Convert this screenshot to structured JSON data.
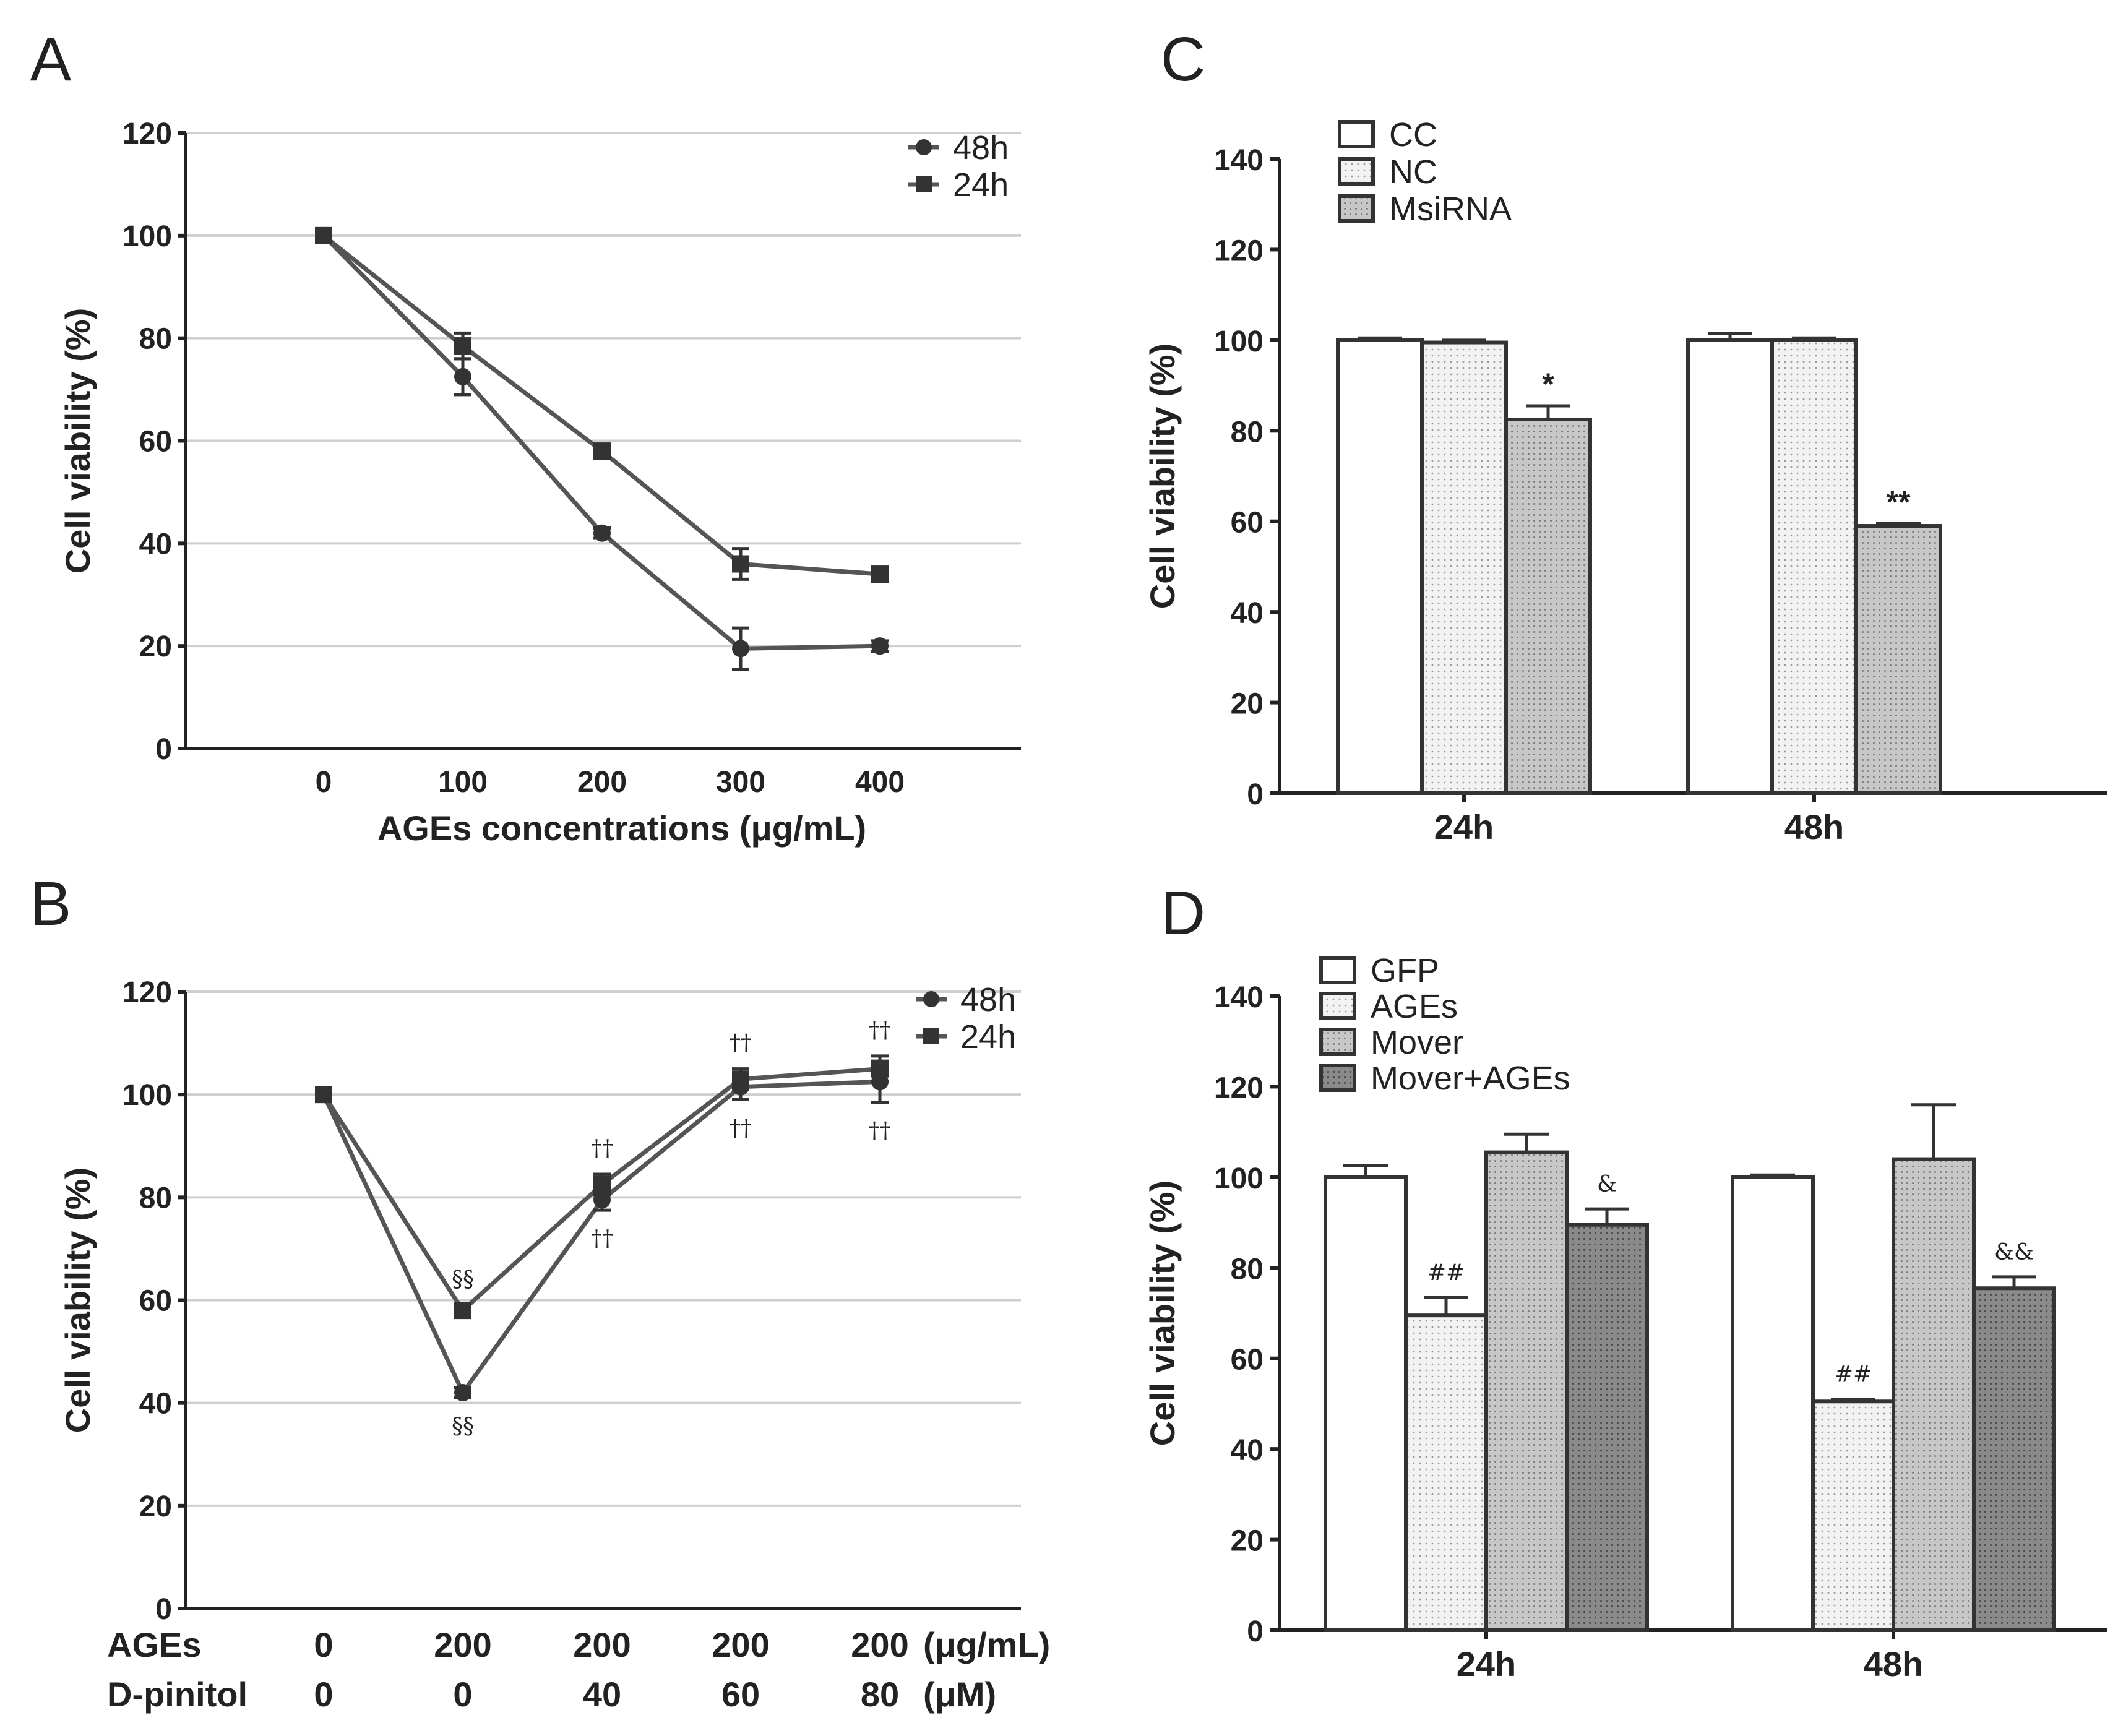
{
  "colors": {
    "axis": "#222222",
    "grid": "#cfcfcf",
    "line": "#555555",
    "bar_white": "#ffffff",
    "bar_light": "#f2f2f2",
    "bar_mid": "#c7c7c7",
    "bar_dark": "#8a8a8a"
  },
  "chart_data": [
    {
      "panel": "A",
      "type": "line",
      "title": "",
      "xlabel": "AGEs concentrations (μg/mL)",
      "ylabel": "Cell viability (%)",
      "x": [
        0,
        100,
        200,
        300,
        400
      ],
      "x_tick_labels": [
        "0",
        "100",
        "200",
        "300",
        "400"
      ],
      "y_ticks": [
        "0",
        "20",
        "40",
        "60",
        "80",
        "100",
        "120"
      ],
      "ylim": [
        0,
        120
      ],
      "grid": true,
      "legend_position": "top-right",
      "series": [
        {
          "name": "48h",
          "marker": "circle-icon",
          "values": [
            100,
            72.5,
            42,
            19.5,
            20
          ],
          "errors": [
            1,
            3.5,
            1,
            4,
            1
          ]
        },
        {
          "name": "24h",
          "marker": "square-icon",
          "values": [
            100,
            78.5,
            58,
            36,
            34
          ],
          "errors": [
            1,
            2.5,
            1,
            3,
            1
          ]
        }
      ]
    },
    {
      "panel": "B",
      "type": "line",
      "title": "",
      "ylabel": "Cell viability (%)",
      "row_labels": [
        {
          "name": "AGEs",
          "unit": "(μg/mL)",
          "values": [
            "0",
            "200",
            "200",
            "200",
            "200"
          ]
        },
        {
          "name": "D-pinitol",
          "unit": "(μM)",
          "values": [
            "0",
            "0",
            "40",
            "60",
            "80"
          ]
        }
      ],
      "y_ticks": [
        "0",
        "20",
        "40",
        "60",
        "80",
        "100",
        "120"
      ],
      "ylim": [
        0,
        120
      ],
      "grid": true,
      "legend_position": "top-right",
      "series": [
        {
          "name": "48h",
          "marker": "circle-icon",
          "values": [
            100,
            42,
            79.5,
            101.5,
            102.5
          ],
          "errors": [
            1,
            1,
            2,
            2.5,
            4
          ]
        },
        {
          "name": "24h",
          "marker": "square-icon",
          "values": [
            100,
            58,
            82.5,
            103,
            105
          ],
          "errors": [
            1,
            1,
            2,
            2,
            2.5
          ]
        }
      ],
      "annotations": [
        {
          "text": "§§",
          "series": "24h",
          "index": 1,
          "side": "above"
        },
        {
          "text": "§§",
          "series": "48h",
          "index": 1,
          "side": "below"
        },
        {
          "text": "††",
          "series": "24h",
          "index": 2,
          "side": "above"
        },
        {
          "text": "††",
          "series": "48h",
          "index": 2,
          "side": "below"
        },
        {
          "text": "††",
          "series": "24h",
          "index": 3,
          "side": "above"
        },
        {
          "text": "††",
          "series": "48h",
          "index": 3,
          "side": "below"
        },
        {
          "text": "††",
          "series": "24h",
          "index": 4,
          "side": "above"
        },
        {
          "text": "††",
          "series": "48h",
          "index": 4,
          "side": "below"
        }
      ]
    },
    {
      "panel": "C",
      "type": "bar",
      "title": "",
      "xlabel": "",
      "ylabel": "Cell viability (%)",
      "categories": [
        "24h",
        "48h"
      ],
      "y_ticks": [
        "0",
        "20",
        "40",
        "60",
        "80",
        "100",
        "120",
        "140"
      ],
      "ylim": [
        0,
        140
      ],
      "grid": false,
      "legend_position": "top-left",
      "series": [
        {
          "name": "CC",
          "fill": "bar_white",
          "values": [
            100,
            100
          ],
          "errors": [
            0.5,
            1.5
          ],
          "labels": [
            "",
            ""
          ]
        },
        {
          "name": "NC",
          "fill": "bar_light",
          "values": [
            99.5,
            100
          ],
          "errors": [
            0.5,
            0.5
          ],
          "labels": [
            "",
            ""
          ]
        },
        {
          "name": "MsiRNA",
          "fill": "bar_mid",
          "values": [
            82.5,
            59
          ],
          "errors": [
            3,
            0.5
          ],
          "labels": [
            "*",
            "**"
          ]
        }
      ]
    },
    {
      "panel": "D",
      "type": "bar",
      "title": "",
      "xlabel": "",
      "ylabel": "Cell viability (%)",
      "categories": [
        "24h",
        "48h"
      ],
      "y_ticks": [
        "0",
        "20",
        "40",
        "60",
        "80",
        "100",
        "120",
        "140"
      ],
      "ylim": [
        0,
        140
      ],
      "grid": false,
      "legend_position": "top-left",
      "series": [
        {
          "name": "GFP",
          "fill": "bar_white",
          "values": [
            100,
            100
          ],
          "errors": [
            2.5,
            0.5
          ],
          "labels": [
            "",
            ""
          ]
        },
        {
          "name": "AGEs",
          "fill": "bar_light",
          "values": [
            69.5,
            50.5
          ],
          "errors": [
            4,
            0.5
          ],
          "labels": [
            "##",
            "##"
          ]
        },
        {
          "name": "Mover",
          "fill": "bar_mid",
          "values": [
            105.5,
            104
          ],
          "errors": [
            4,
            12
          ],
          "labels": [
            "",
            ""
          ]
        },
        {
          "name": "Mover+AGEs",
          "fill": "bar_dark",
          "values": [
            89.5,
            75.5
          ],
          "errors": [
            3.5,
            2.5
          ],
          "labels": [
            "&",
            "&&"
          ]
        }
      ]
    }
  ]
}
